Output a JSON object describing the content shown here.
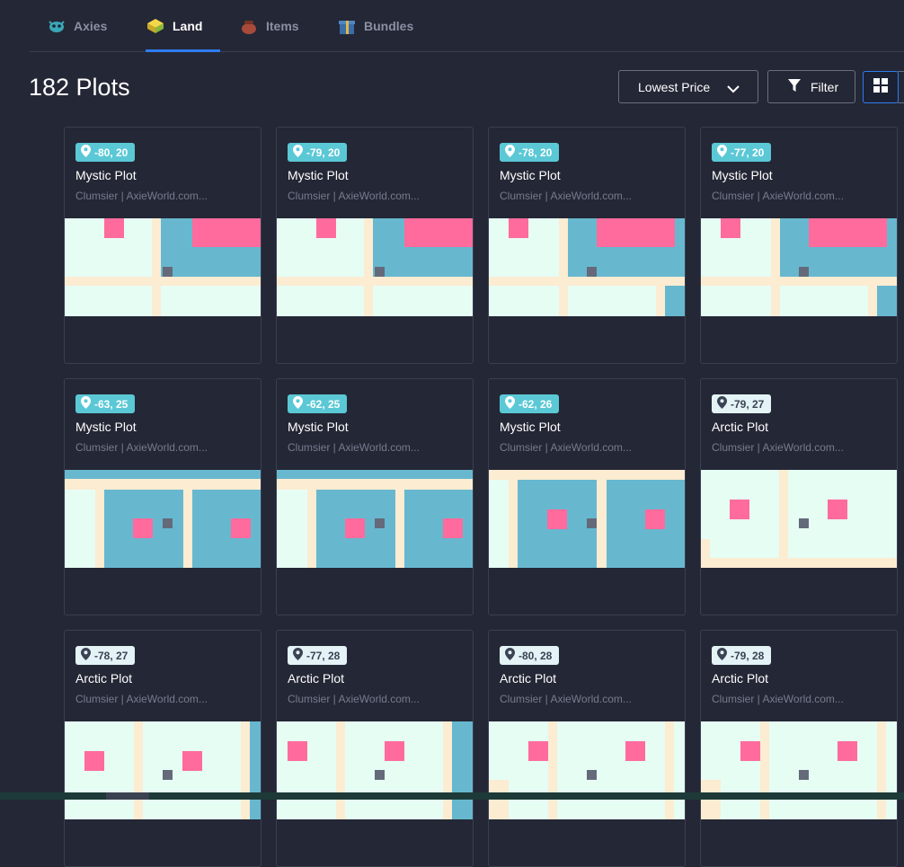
{
  "tabs": [
    {
      "label": "Axies",
      "icon": "axie-icon",
      "active": false
    },
    {
      "label": "Land",
      "icon": "land-block-icon",
      "active": true
    },
    {
      "label": "Items",
      "icon": "pot-icon",
      "active": false
    },
    {
      "label": "Bundles",
      "icon": "gift-box-icon",
      "active": false
    }
  ],
  "header": {
    "title": "182 Plots",
    "sort_label": "Lowest Price",
    "filter_label": "Filter"
  },
  "colors": {
    "background": "#242735",
    "accent": "#2f7cf0",
    "mystic_badge": "#5bc8d6",
    "arctic_badge": "#e3f3f6",
    "land_light": "#e6fdf4",
    "land_water": "#67b8cf",
    "road": "#fcecd2",
    "pink": "#ff6b9d",
    "marker": "#646a7a"
  },
  "plots": [
    {
      "coords": "-80, 20",
      "name": "Mystic Plot",
      "owner": "Clumsier | AxieWorld.com...",
      "kind": "mystic",
      "map": "a"
    },
    {
      "coords": "-79, 20",
      "name": "Mystic Plot",
      "owner": "Clumsier | AxieWorld.com...",
      "kind": "mystic",
      "map": "a"
    },
    {
      "coords": "-78, 20",
      "name": "Mystic Plot",
      "owner": "Clumsier | AxieWorld.com...",
      "kind": "mystic",
      "map": "a2"
    },
    {
      "coords": "-77, 20",
      "name": "Mystic Plot",
      "owner": "Clumsier | AxieWorld.com...",
      "kind": "mystic",
      "map": "a2"
    },
    {
      "coords": "-63, 25",
      "name": "Mystic Plot",
      "owner": "Clumsier | AxieWorld.com...",
      "kind": "mystic",
      "map": "b"
    },
    {
      "coords": "-62, 25",
      "name": "Mystic Plot",
      "owner": "Clumsier | AxieWorld.com...",
      "kind": "mystic",
      "map": "b"
    },
    {
      "coords": "-62, 26",
      "name": "Mystic Plot",
      "owner": "Clumsier | AxieWorld.com...",
      "kind": "mystic",
      "map": "c"
    },
    {
      "coords": "-79, 27",
      "name": "Arctic Plot",
      "owner": "Clumsier | AxieWorld.com...",
      "kind": "arctic",
      "map": "d"
    },
    {
      "coords": "-78, 27",
      "name": "Arctic Plot",
      "owner": "Clumsier | AxieWorld.com...",
      "kind": "arctic",
      "map": "e"
    },
    {
      "coords": "-77, 28",
      "name": "Arctic Plot",
      "owner": "Clumsier | AxieWorld.com...",
      "kind": "arctic",
      "map": "f"
    },
    {
      "coords": "-80, 28",
      "name": "Arctic Plot",
      "owner": "Clumsier | AxieWorld.com...",
      "kind": "arctic",
      "map": "g"
    },
    {
      "coords": "-79, 28",
      "name": "Arctic Plot",
      "owner": "Clumsier | AxieWorld.com...",
      "kind": "arctic",
      "map": "g"
    }
  ]
}
